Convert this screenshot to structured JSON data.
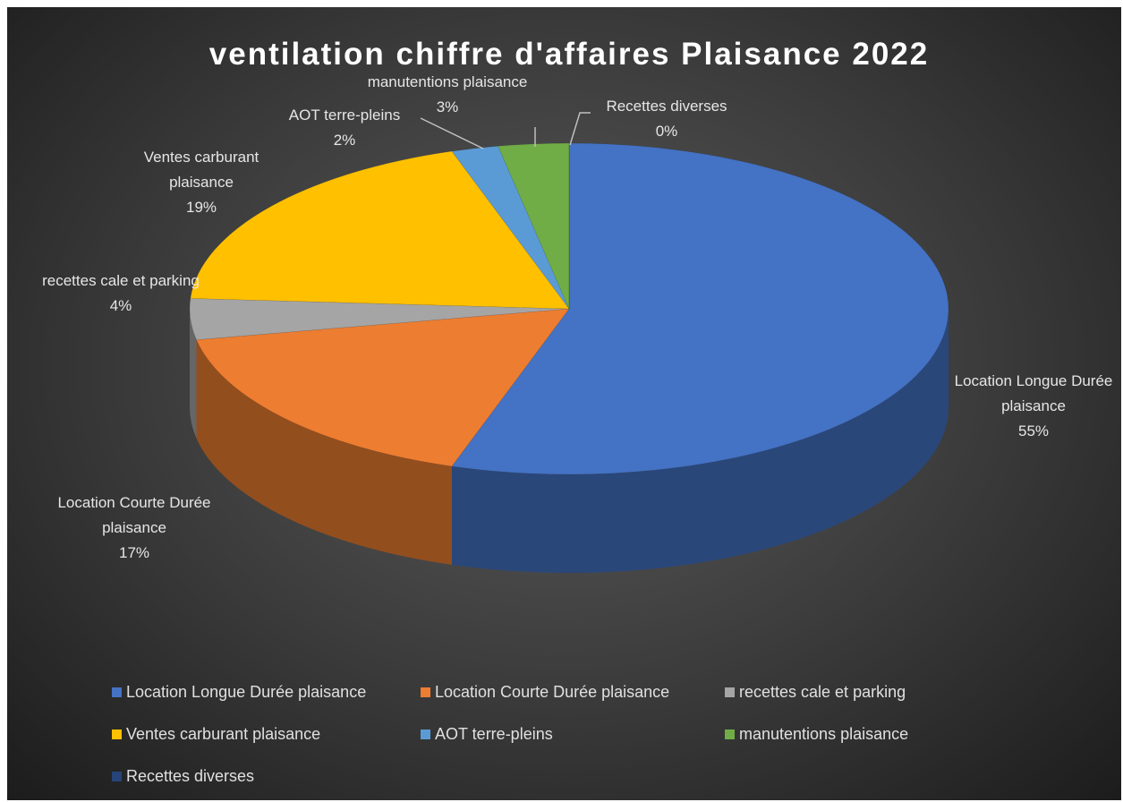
{
  "chart_data": {
    "type": "pie",
    "title": "ventilation chiffre d'affaires Plaisance 2022",
    "categories": [
      "Location Longue Durée plaisance",
      "Location Courte Durée plaisance",
      "recettes cale et parking",
      "Ventes carburant plaisance",
      "AOT terre-pleins",
      "manutentions plaisance",
      "Recettes diverses"
    ],
    "values": [
      55,
      17,
      4,
      19,
      2,
      3,
      0
    ],
    "value_labels": [
      "55%",
      "17%",
      "4%",
      "19%",
      "2%",
      "3%",
      "0%"
    ],
    "colors": [
      "#4472c4",
      "#ed7d31",
      "#a5a5a5",
      "#ffc000",
      "#5b9bd5",
      "#70ad47",
      "#264478"
    ],
    "legend": "bottom"
  }
}
